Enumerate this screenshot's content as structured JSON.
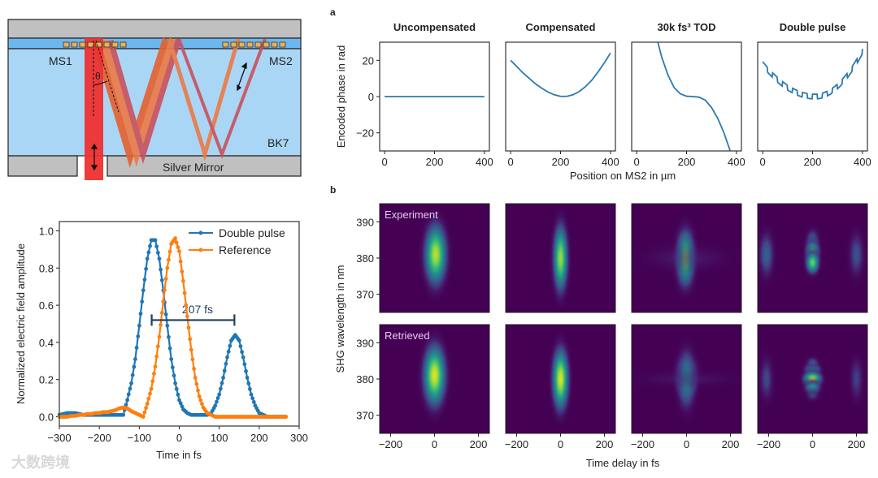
{
  "diagram": {
    "labels": {
      "ms1": "MS1",
      "ms2": "MS2",
      "bk7": "BK7",
      "mirror": "Silver Mirror",
      "theta": "θ"
    },
    "colors": {
      "housing": "#c0c0c0",
      "coating": "#6db7ef",
      "glass": "#aad6f6",
      "input_beam": "#ef3030",
      "beam_orange": "#ec7a45",
      "beam_red": "#c8505c",
      "metasurface": "#f0b050"
    }
  },
  "watermark": "大数跨境",
  "panel_labels": {
    "a": "a",
    "b": "b"
  },
  "chart_data": [
    {
      "id": "pulse",
      "type": "line",
      "xlabel": "Time in fs",
      "ylabel": "Normalized electric field amplitude",
      "xlim": [
        -300,
        300
      ],
      "ylim": [
        -0.05,
        1.05
      ],
      "xticks": [
        -300,
        -200,
        -100,
        0,
        100,
        200,
        300
      ],
      "yticks": [
        0.0,
        0.2,
        0.4,
        0.6,
        0.8,
        1.0
      ],
      "legend": "top-right",
      "x": [
        -300,
        -290,
        -280,
        -270,
        -260,
        -250,
        -240,
        -230,
        -220,
        -210,
        -200,
        -190,
        -180,
        -170,
        -160,
        -150,
        -140,
        -130,
        -120,
        -110,
        -100,
        -90,
        -80,
        -70,
        -60,
        -50,
        -40,
        -30,
        -20,
        -10,
        0,
        10,
        20,
        30,
        40,
        50,
        60,
        70,
        80,
        90,
        100,
        110,
        120,
        130,
        140,
        150,
        160,
        170,
        180,
        190,
        200,
        210,
        220,
        230,
        240,
        250,
        260,
        270
      ],
      "series": [
        {
          "name": "Double pulse",
          "color": "#1f77b4",
          "values": [
            0.01,
            0.015,
            0.02,
            0.02,
            0.02,
            0.015,
            0.01,
            0.01,
            0.01,
            0.01,
            0.01,
            0.01,
            0.01,
            0.01,
            0.01,
            0.01,
            0.01,
            0.09,
            0.18,
            0.31,
            0.49,
            0.68,
            0.85,
            0.95,
            0.95,
            0.85,
            0.68,
            0.49,
            0.31,
            0.18,
            0.09,
            0.04,
            0.02,
            0.01,
            0.01,
            0.01,
            0.01,
            0.01,
            0.02,
            0.06,
            0.12,
            0.21,
            0.32,
            0.41,
            0.44,
            0.41,
            0.32,
            0.21,
            0.12,
            0.06,
            0.02,
            0.01,
            0,
            0,
            0,
            0,
            0,
            0
          ]
        },
        {
          "name": "Reference",
          "color": "#ff7f0e",
          "values": [
            0,
            0,
            0,
            0.005,
            0.005,
            0.01,
            0.01,
            0.015,
            0.015,
            0.02,
            0.02,
            0.025,
            0.025,
            0.03,
            0.035,
            0.045,
            0.05,
            0.045,
            0.03,
            0.02,
            0.01,
            0,
            0.07,
            0.15,
            0.27,
            0.43,
            0.62,
            0.8,
            0.93,
            0.96,
            0.89,
            0.73,
            0.54,
            0.36,
            0.21,
            0.11,
            0.05,
            0.02,
            0.01,
            0,
            0,
            0,
            0,
            0,
            0,
            0,
            0,
            0,
            0,
            0,
            0,
            0,
            0,
            0,
            0,
            0,
            0,
            0
          ]
        }
      ],
      "annotation": {
        "text": "207 fs",
        "from": -69,
        "to": 138,
        "y": 0.52,
        "color": "#1d3f5e"
      }
    },
    {
      "id": "phase",
      "type": "line",
      "panel": "a",
      "xlabel": "Position on MS2 in µm",
      "ylabel": "Encoded phase in rad",
      "xlim": [
        -20,
        420
      ],
      "ylim": [
        -30,
        30
      ],
      "xticks": [
        0,
        200,
        400
      ],
      "yticks": [
        -20,
        0,
        20
      ],
      "color": "#2a7ab0",
      "subplots": [
        {
          "title": "Uncompensated",
          "x": [
            0,
            400
          ],
          "y": [
            0,
            0
          ]
        },
        {
          "title": "Compensated",
          "x": [
            0,
            25,
            50,
            75,
            100,
            125,
            150,
            175,
            200,
            225,
            250,
            275,
            300,
            325,
            350,
            375,
            400
          ],
          "y": [
            20,
            16.5,
            13,
            10,
            7,
            4.6,
            2.5,
            1,
            0.1,
            0.1,
            1,
            2.8,
            5.5,
            9,
            13.5,
            18.5,
            24
          ]
        },
        {
          "title": "30k fs³ TOD",
          "x": [
            85,
            100,
            125,
            150,
            175,
            200,
            225,
            250,
            275,
            300,
            325,
            350,
            375
          ],
          "y": [
            30,
            22,
            12,
            5,
            1.5,
            0.2,
            0,
            -0.3,
            -2,
            -6,
            -12,
            -20,
            -30
          ]
        },
        {
          "title": "Double pulse",
          "x": [
            0,
            10,
            20,
            30,
            40,
            50,
            60,
            70,
            80,
            90,
            100,
            110,
            120,
            130,
            140,
            150,
            160,
            170,
            180,
            190,
            200,
            210,
            220,
            230,
            240,
            250,
            260,
            270,
            280,
            290,
            300,
            310,
            320,
            330,
            340,
            350,
            360,
            370,
            380,
            390,
            400
          ],
          "y": [
            18,
            16.3,
            14.7,
            13.2,
            11.8,
            10.4,
            9.2,
            8,
            6.9,
            5.9,
            4.9,
            4.1,
            3.3,
            2.6,
            2,
            1.5,
            1,
            0.65,
            0.37,
            0.16,
            0.04,
            0,
            0.07,
            0.28,
            0.62,
            1.1,
            1.7,
            2.5,
            3.4,
            4.4,
            5.6,
            6.9,
            8.4,
            10,
            11.7,
            13.6,
            15.6,
            17.7,
            20,
            22.4,
            25
          ],
          "modulation": {
            "amplitude_rad": 1.3,
            "period_um": 40
          }
        }
      ]
    },
    {
      "id": "frog",
      "type": "heatmap",
      "panel": "b",
      "xlabel": "Time delay in fs",
      "ylabel": "SHG wavelength in nm",
      "xlim": [
        -250,
        250
      ],
      "ylim": [
        365,
        395
      ],
      "xticks": [
        -200,
        0,
        200
      ],
      "yticks": [
        370,
        380,
        390
      ],
      "colormap": [
        "#440154",
        "#482878",
        "#3e4989",
        "#31688e",
        "#26828e",
        "#1f9e89",
        "#35b779",
        "#6ece58",
        "#b5de2b",
        "#fde725"
      ],
      "rows": [
        {
          "label": "Experiment",
          "panels": [
            [
              {
                "t": 5,
                "wl": 381,
                "st": 30,
                "sw": 5,
                "a": 0.9
              }
            ],
            [
              {
                "t": 0,
                "wl": 380,
                "st": 20,
                "sw": 5.5,
                "a": 0.85
              }
            ],
            [
              {
                "t": -5,
                "wl": 380,
                "st": 25,
                "sw": 4.5,
                "a": 0.82
              },
              {
                "t": 0,
                "wl": 380,
                "st": 130,
                "sw": 2.5,
                "a": 0.12
              }
            ],
            [
              {
                "t": -210,
                "wl": 381,
                "st": 22,
                "sw": 4,
                "a": 0.3
              },
              {
                "t": 0,
                "wl": 383.5,
                "st": 18,
                "sw": 2.5,
                "a": 0.45
              },
              {
                "t": 0,
                "wl": 381.5,
                "st": 18,
                "sw": 1.8,
                "a": 0.82
              },
              {
                "t": 0,
                "wl": 378.8,
                "st": 18,
                "sw": 1.8,
                "a": 0.78
              },
              {
                "t": 200,
                "wl": 381,
                "st": 22,
                "sw": 4,
                "a": 0.25
              }
            ]
          ]
        },
        {
          "label": "Retrieved",
          "panels": [
            [
              {
                "t": 0,
                "wl": 381,
                "st": 30,
                "sw": 5,
                "a": 0.95
              }
            ],
            [
              {
                "t": 0,
                "wl": 380,
                "st": 22,
                "sw": 5,
                "a": 0.95
              }
            ],
            [
              {
                "t": 0,
                "wl": 381.5,
                "st": 28,
                "sw": 2.5,
                "a": 0.6
              },
              {
                "t": 0,
                "wl": 379.2,
                "st": 25,
                "sw": 2.2,
                "a": 0.85
              },
              {
                "t": 0,
                "wl": 380,
                "st": 26,
                "sw": 5,
                "a": 0.45
              },
              {
                "t": 0,
                "wl": 380,
                "st": 160,
                "sw": 1.5,
                "a": 0.1
              }
            ],
            [
              {
                "t": -210,
                "wl": 380,
                "st": 20,
                "sw": 4,
                "a": 0.22
              },
              {
                "t": 0,
                "wl": 382.5,
                "st": 22,
                "sw": 1.2,
                "a": 0.55
              },
              {
                "t": 0,
                "wl": 380,
                "st": 24,
                "sw": 1.2,
                "a": 0.95
              },
              {
                "t": 0,
                "wl": 377.7,
                "st": 22,
                "sw": 1.2,
                "a": 0.5
              },
              {
                "t": 0,
                "wl": 375.5,
                "st": 20,
                "sw": 1,
                "a": 0.2
              },
              {
                "t": 0,
                "wl": 384.5,
                "st": 18,
                "sw": 1,
                "a": 0.25
              },
              {
                "t": 200,
                "wl": 380,
                "st": 20,
                "sw": 4,
                "a": 0.2
              }
            ]
          ]
        }
      ]
    }
  ]
}
